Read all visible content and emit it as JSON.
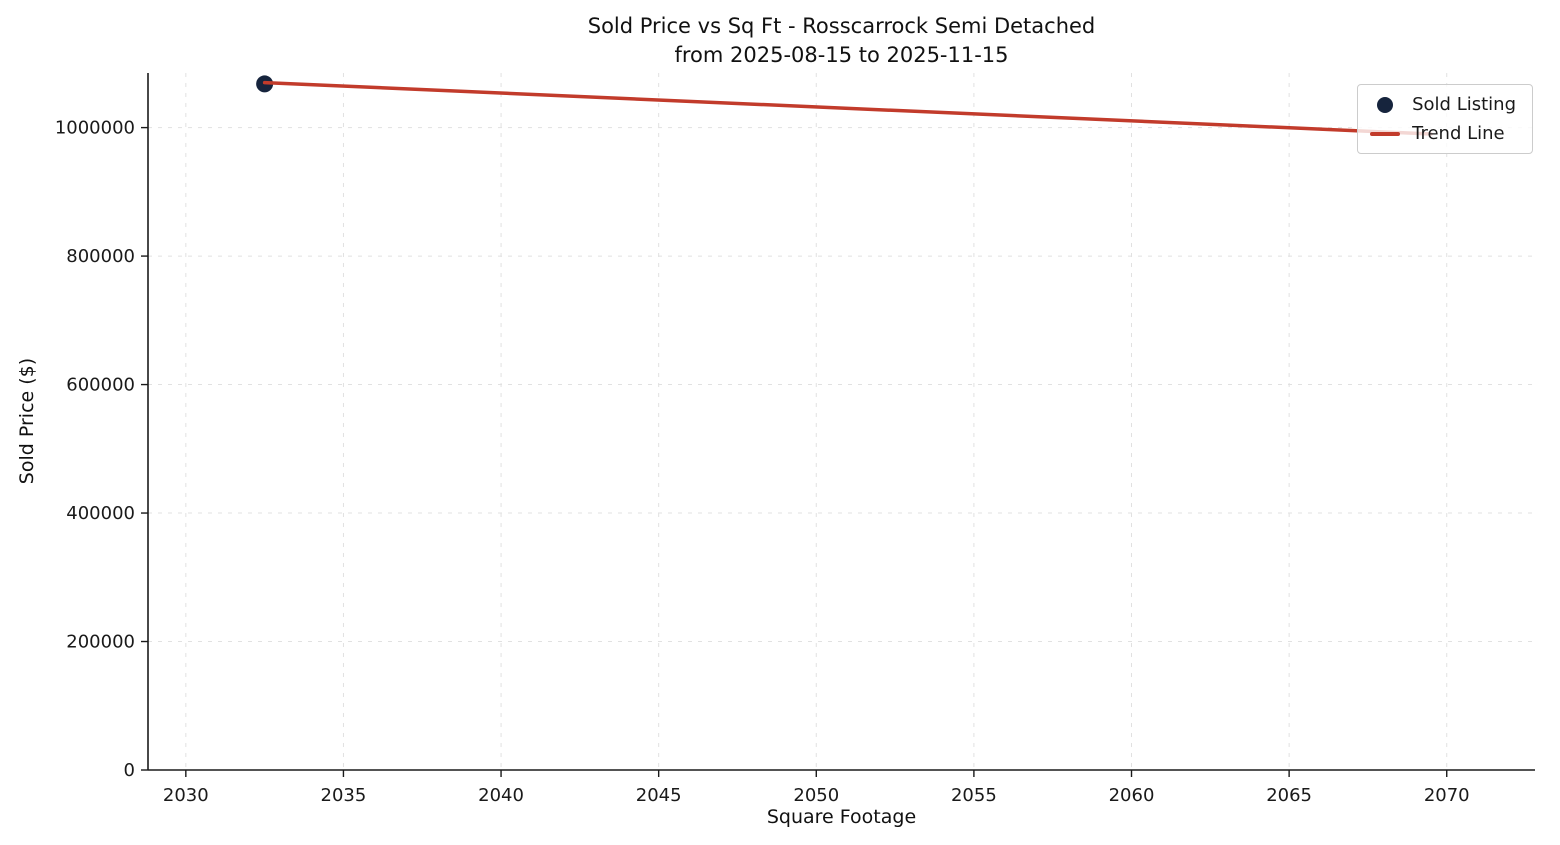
{
  "chart_data": {
    "type": "scatter",
    "title_line1": "Sold Price vs Sq Ft - Rosscarrock Semi Detached",
    "title_line2": "from 2025-08-15 to 2025-11-15",
    "xlabel": "Square Footage",
    "ylabel": "Sold Price ($)",
    "xlim": [
      2028.8,
      2072.8
    ],
    "ylim": [
      0,
      1085000
    ],
    "x_ticks": [
      2030,
      2035,
      2040,
      2045,
      2050,
      2055,
      2060,
      2065,
      2070
    ],
    "y_ticks": [
      0,
      200000,
      400000,
      600000,
      800000,
      1000000
    ],
    "grid": true,
    "legend_position": "upper right",
    "colors": {
      "point": "#16243d",
      "trend": "#c23b2b",
      "grid": "#e1e1e1",
      "axis": "#1a1a1a"
    },
    "series": [
      {
        "name": "Sold Listing",
        "type": "scatter",
        "color": "#16243d",
        "points": [
          {
            "x": 2032.5,
            "y": 1068000
          }
        ]
      },
      {
        "name": "Trend Line",
        "type": "line",
        "color": "#c23b2b",
        "points": [
          {
            "x": 2032.5,
            "y": 1070000
          },
          {
            "x": 2069.5,
            "y": 990000
          }
        ]
      }
    ]
  }
}
